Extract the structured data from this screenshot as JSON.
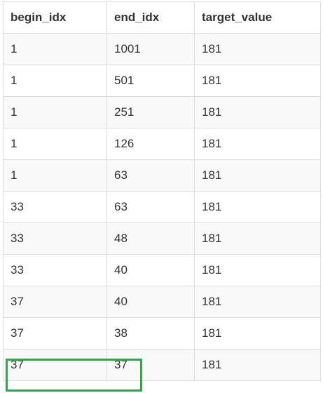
{
  "table": {
    "headers": [
      "begin_idx",
      "end_idx",
      "target_value"
    ],
    "rows": [
      [
        "1",
        "1001",
        "181"
      ],
      [
        "1",
        "501",
        "181"
      ],
      [
        "1",
        "251",
        "181"
      ],
      [
        "1",
        "126",
        "181"
      ],
      [
        "1",
        "63",
        "181"
      ],
      [
        "33",
        "63",
        "181"
      ],
      [
        "33",
        "48",
        "181"
      ],
      [
        "33",
        "40",
        "181"
      ],
      [
        "37",
        "40",
        "181"
      ],
      [
        "37",
        "38",
        "181"
      ],
      [
        "37",
        "37",
        "181"
      ]
    ]
  },
  "highlight": {
    "row_index": 10,
    "columns": [
      "begin_idx",
      "end_idx"
    ],
    "color": "#2ea84a"
  }
}
